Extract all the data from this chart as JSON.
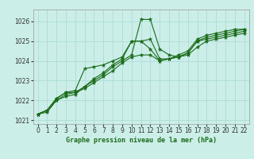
{
  "title": "Graphe pression niveau de la mer (hPa)",
  "bg_color": "#cceee8",
  "grid_color": "#aaddd6",
  "line_color": "#1a6b1a",
  "xlim": [
    -0.5,
    22.5
  ],
  "ylim": [
    1020.8,
    1026.6
  ],
  "yticks": [
    1021,
    1022,
    1023,
    1024,
    1025,
    1026
  ],
  "xticks": [
    0,
    1,
    2,
    3,
    4,
    5,
    6,
    7,
    8,
    9,
    10,
    11,
    12,
    13,
    14,
    15,
    16,
    17,
    18,
    19,
    20,
    21,
    22
  ],
  "series": [
    [
      1021.3,
      1021.4,
      1022.0,
      1022.2,
      1022.3,
      1022.7,
      1023.0,
      1023.3,
      1023.7,
      1024.0,
      1024.3,
      1026.1,
      1026.1,
      1024.6,
      1024.3,
      1024.2,
      1024.4,
      1025.0,
      1025.1,
      1025.2,
      1025.3,
      1025.4,
      1025.5
    ],
    [
      1021.3,
      1021.5,
      1022.0,
      1022.3,
      1022.4,
      1022.7,
      1023.1,
      1023.4,
      1023.8,
      1024.1,
      1025.0,
      1025.0,
      1025.1,
      1024.1,
      1024.1,
      1024.2,
      1024.4,
      1025.0,
      1025.2,
      1025.3,
      1025.4,
      1025.5,
      1025.6
    ],
    [
      1021.3,
      1021.5,
      1022.1,
      1022.4,
      1022.5,
      1023.6,
      1023.7,
      1023.8,
      1024.0,
      1024.2,
      1025.0,
      1025.0,
      1024.6,
      1024.0,
      1024.1,
      1024.3,
      1024.5,
      1025.1,
      1025.3,
      1025.4,
      1025.5,
      1025.6,
      1025.6
    ],
    [
      1021.3,
      1021.5,
      1022.1,
      1022.4,
      1022.4,
      1022.6,
      1022.9,
      1023.2,
      1023.5,
      1023.9,
      1024.2,
      1024.3,
      1024.3,
      1024.0,
      1024.1,
      1024.2,
      1024.3,
      1024.7,
      1025.0,
      1025.1,
      1025.2,
      1025.3,
      1025.4
    ]
  ],
  "tick_fontsize": 5.5,
  "label_fontsize": 6.0
}
